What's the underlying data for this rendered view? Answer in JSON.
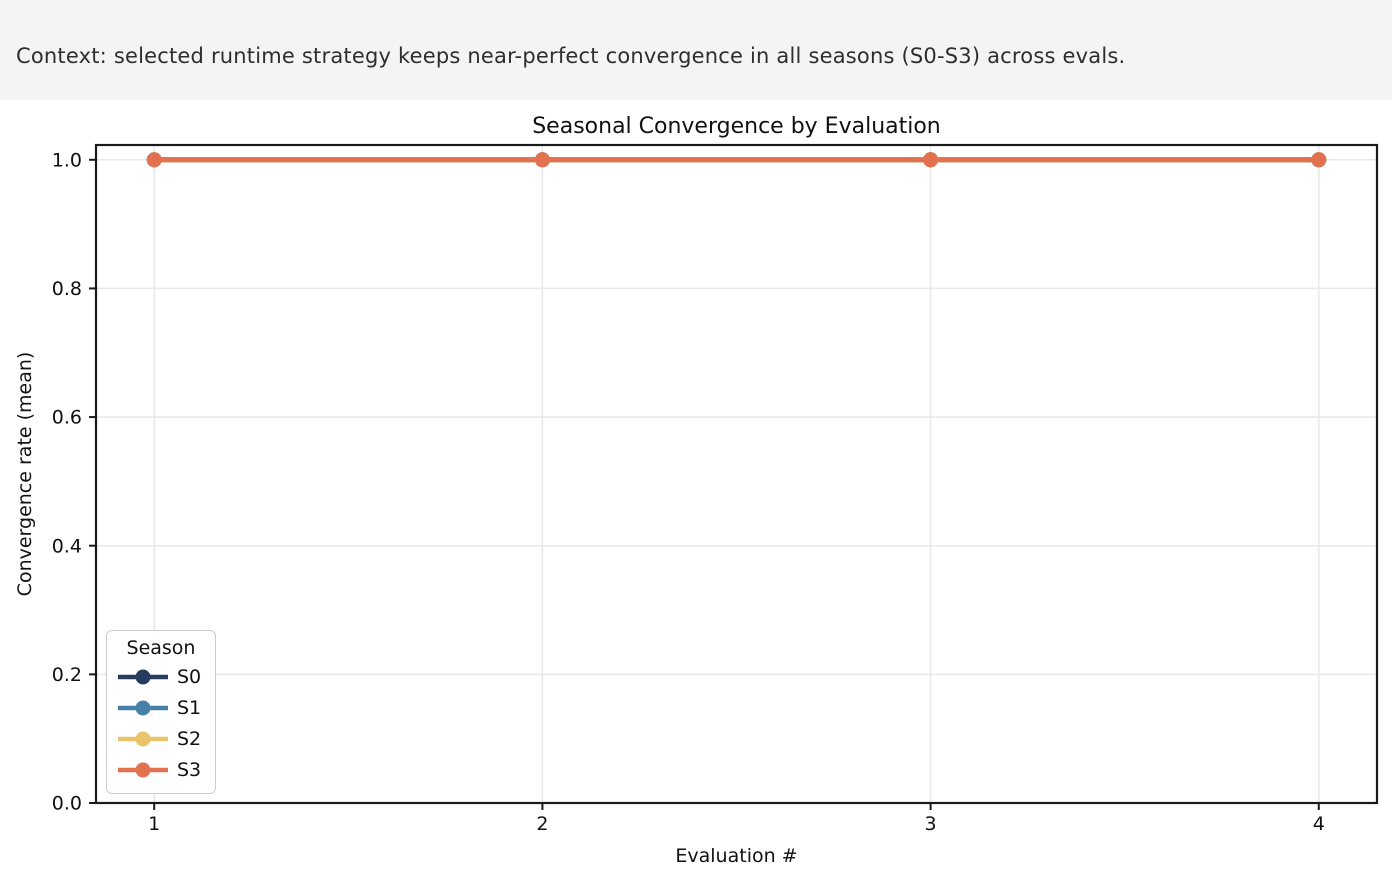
{
  "banner": {
    "text": "Context: selected runtime strategy keeps near-perfect convergence in all seasons (S0-S3) across evals."
  },
  "chart_data": {
    "type": "line",
    "title": "Seasonal Convergence by Evaluation",
    "xlabel": "Evaluation #",
    "ylabel": "Convergence rate (mean)",
    "x": [
      1,
      2,
      3,
      4
    ],
    "series": [
      {
        "name": "S0",
        "color": "#253c5f",
        "values": [
          1.0,
          1.0,
          1.0,
          1.0
        ]
      },
      {
        "name": "S1",
        "color": "#4781a8",
        "values": [
          1.0,
          1.0,
          1.0,
          1.0
        ]
      },
      {
        "name": "S2",
        "color": "#e9c46a",
        "values": [
          1.0,
          1.0,
          1.0,
          1.0
        ]
      },
      {
        "name": "S3",
        "color": "#e2714f",
        "values": [
          1.0,
          1.0,
          1.0,
          1.0
        ]
      }
    ],
    "xticks": {
      "values": [
        1,
        2,
        3,
        4
      ],
      "labels": [
        "1",
        "2",
        "3",
        "4"
      ]
    },
    "yticks": {
      "values": [
        0,
        0.2,
        0.4,
        0.6,
        0.8,
        1.0
      ],
      "labels": [
        "0.0",
        "0.2",
        "0.4",
        "0.6",
        "0.8",
        "1.0"
      ]
    },
    "xlim": [
      0.85,
      4.15
    ],
    "ylim": [
      0,
      1.023
    ],
    "grid": true,
    "legend": {
      "title": "Season",
      "position": "lower-left"
    }
  },
  "style": {
    "banner_bg": "#f4f4f4",
    "banner_fg": "#2e2e2e",
    "background": "#ffffff",
    "grid_color": "#e8e8e8",
    "spine_color": "#1a1a1a",
    "tick_color": "#1a1a1a",
    "text_color": "#111111",
    "legend_border": "#cccccc"
  }
}
